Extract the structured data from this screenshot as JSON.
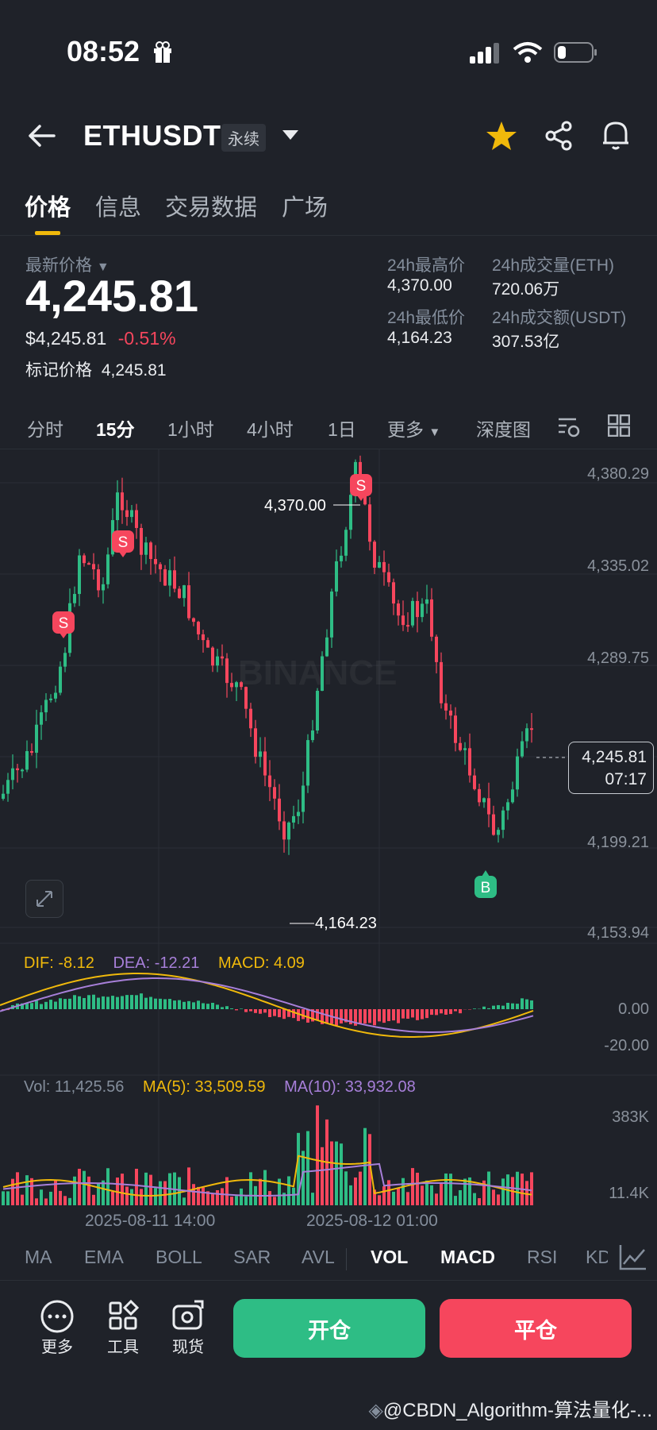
{
  "status_bar": {
    "time": "08:52"
  },
  "header": {
    "symbol": "ETHUSDT",
    "badge": "永续"
  },
  "tabs": [
    {
      "label": "价格"
    },
    {
      "label": "信息"
    },
    {
      "label": "交易数据"
    },
    {
      "label": "广场"
    }
  ],
  "price": {
    "last_label": "最新价格",
    "last": "4,245.81",
    "usd": "$4,245.81",
    "change": "-0.51%",
    "mark_label": "标记价格",
    "mark": "4,245.81"
  },
  "stats": {
    "high_label": "24h最高价",
    "high": "4,370.00",
    "low_label": "24h最低价",
    "low": "4,164.23",
    "vol_eth_label": "24h成交量(ETH)",
    "vol_eth": "720.06万",
    "vol_usdt_label": "24h成交额(USDT)",
    "vol_usdt": "307.53亿"
  },
  "timeframes": {
    "t1": "分时",
    "t2": "15分",
    "t3": "1小时",
    "t4": "4小时",
    "t5": "1日",
    "more": "更多",
    "depth": "深度图"
  },
  "chart_axis": {
    "p1": "4,380.29",
    "p2": "4,335.02",
    "p3": "4,289.75",
    "p4": "4,199.21",
    "p5": "4,153.94"
  },
  "current_tag": {
    "price": "4,245.81",
    "countdown": "07:17"
  },
  "annotations": {
    "high": "4,370.00",
    "low": "4,164.23",
    "sell": "S",
    "buy": "B"
  },
  "macd": {
    "dif": "DIF: -8.12",
    "dea": "DEA: -12.21",
    "macd": "MACD: 4.09",
    "axis_top": "0.00",
    "axis_bottom": "-20.00"
  },
  "volume": {
    "vol": "Vol: 11,425.56",
    "ma5": "MA(5): 33,509.59",
    "ma10": "MA(10): 33,932.08",
    "axis_top": "383K",
    "axis_bottom": "11.4K"
  },
  "time_axis": {
    "t1": "2025-08-11 14:00",
    "t2": "2025-08-12 01:00"
  },
  "indicators": {
    "i1": "MA",
    "i2": "EMA",
    "i3": "BOLL",
    "i4": "SAR",
    "i5": "AVL",
    "i6": "VOL",
    "i7": "MACD",
    "i8": "RSI",
    "i9": "KD"
  },
  "bottom": {
    "more": "更多",
    "tools": "工具",
    "spot": "现货",
    "open": "开仓",
    "close": "平仓"
  },
  "watermark": {
    "brand": "BINANCE",
    "credit": "@CBDN_Algorithm-算法量化-..."
  },
  "colors": {
    "up": "#2ebd85",
    "down": "#f6465d",
    "accent": "#f0b90b",
    "dif": "#f0b90b",
    "dea": "#a77fd9"
  }
}
